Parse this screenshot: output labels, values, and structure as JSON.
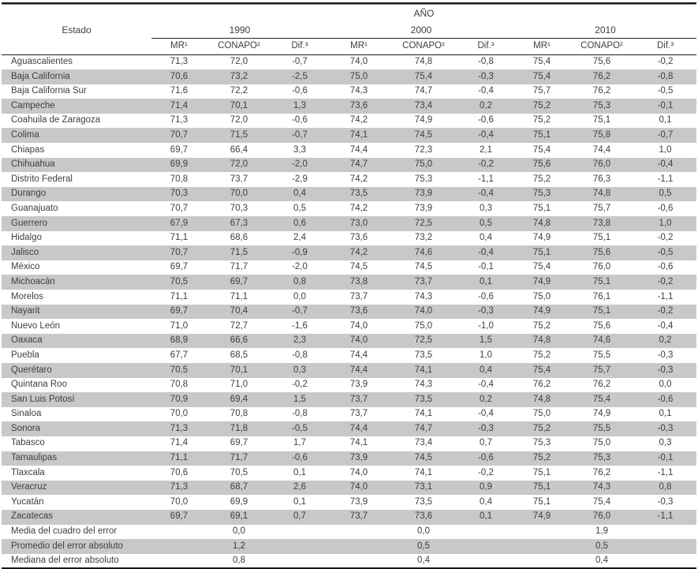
{
  "table": {
    "title_axis": "AÑO",
    "estado_header": "Estado",
    "years": [
      "1990",
      "2000",
      "2010"
    ],
    "subheaders": [
      "MR¹",
      "CONAPO²",
      "Dif.³"
    ],
    "colors": {
      "stripe_gray": "#c8c8c8",
      "text": "#3f3f3f",
      "rule": "#161616"
    },
    "rows": [
      {
        "estado": "Aguascalientes",
        "values": [
          "71,3",
          "72,0",
          "-0,7",
          "74,0",
          "74,8",
          "-0,8",
          "75,4",
          "75,6",
          "-0,2"
        ]
      },
      {
        "estado": "Baja California",
        "values": [
          "70,6",
          "73,2",
          "-2,5",
          "75,0",
          "75,4",
          "-0,3",
          "75,4",
          "76,2",
          "-0,8"
        ]
      },
      {
        "estado": "Baja California Sur",
        "values": [
          "71,6",
          "72,2",
          "-0,6",
          "74,3",
          "74,7",
          "-0,4",
          "75,7",
          "76,2",
          "-0,5"
        ]
      },
      {
        "estado": "Campeche",
        "values": [
          "71,4",
          "70,1",
          "1,3",
          "73,6",
          "73,4",
          "0,2",
          "75,2",
          "75,3",
          "-0,1"
        ]
      },
      {
        "estado": "Coahuila de Zaragoza",
        "values": [
          "71,3",
          "72,0",
          "-0,6",
          "74,2",
          "74,9",
          "-0,6",
          "75,2",
          "75,1",
          "0,1"
        ]
      },
      {
        "estado": "Colima",
        "values": [
          "70,7",
          "71,5",
          "-0,7",
          "74,1",
          "74,5",
          "-0,4",
          "75,1",
          "75,8",
          "-0,7"
        ]
      },
      {
        "estado": "Chiapas",
        "values": [
          "69,7",
          "66,4",
          "3,3",
          "74,4",
          "72,3",
          "2,1",
          "75,4",
          "74,4",
          "1,0"
        ]
      },
      {
        "estado": "Chihuahua",
        "values": [
          "69,9",
          "72,0",
          "-2,0",
          "74,7",
          "75,0",
          "-0,2",
          "75,6",
          "76,0",
          "-0,4"
        ]
      },
      {
        "estado": "Distrito Federal",
        "values": [
          "70,8",
          "73,7",
          "-2,9",
          "74,2",
          "75,3",
          "-1,1",
          "75,2",
          "76,3",
          "-1,1"
        ]
      },
      {
        "estado": "Durango",
        "values": [
          "70,3",
          "70,0",
          "0,4",
          "73,5",
          "73,9",
          "-0,4",
          "75,3",
          "74,8",
          "0,5"
        ]
      },
      {
        "estado": "Guanajuato",
        "values": [
          "70,7",
          "70,3",
          "0,5",
          "74,2",
          "73,9",
          "0,3",
          "75,1",
          "75,7",
          "-0,6"
        ]
      },
      {
        "estado": "Guerrero",
        "values": [
          "67,9",
          "67,3",
          "0,6",
          "73,0",
          "72,5",
          "0,5",
          "74,8",
          "73,8",
          "1,0"
        ]
      },
      {
        "estado": "Hidalgo",
        "values": [
          "71,1",
          "68,6",
          "2,4",
          "73,6",
          "73,2",
          "0,4",
          "74,9",
          "75,1",
          "-0,2"
        ]
      },
      {
        "estado": "Jalisco",
        "values": [
          "70,7",
          "71,5",
          "-0,9",
          "74,2",
          "74,6",
          "-0,4",
          "75,1",
          "75,6",
          "-0,5"
        ]
      },
      {
        "estado": "México",
        "values": [
          "69,7",
          "71,7",
          "-2,0",
          "74,5",
          "74,5",
          "-0,1",
          "75,4",
          "76,0",
          "-0,6"
        ]
      },
      {
        "estado": "Michoacán",
        "values": [
          "70,5",
          "69,7",
          "0,8",
          "73,8",
          "73,7",
          "0,1",
          "74,9",
          "75,1",
          "-0,2"
        ]
      },
      {
        "estado": "Morelos",
        "values": [
          "71,1",
          "71,1",
          "0,0",
          "73,7",
          "74,3",
          "-0,6",
          "75,0",
          "76,1",
          "-1,1"
        ]
      },
      {
        "estado": "Nayarit",
        "values": [
          "69,7",
          "70,4",
          "-0,7",
          "73,6",
          "74,0",
          "-0,3",
          "74,9",
          "75,1",
          "-0,2"
        ]
      },
      {
        "estado": "Nuevo León",
        "values": [
          "71,0",
          "72,7",
          "-1,6",
          "74,0",
          "75,0",
          "-1,0",
          "75,2",
          "75,6",
          "-0,4"
        ]
      },
      {
        "estado": "Oaxaca",
        "values": [
          "68,9",
          "66,6",
          "2,3",
          "74,0",
          "72,5",
          "1,5",
          "74,8",
          "74,6",
          "0,2"
        ]
      },
      {
        "estado": "Puebla",
        "values": [
          "67,7",
          "68,5",
          "-0,8",
          "74,4",
          "73,5",
          "1,0",
          "75,2",
          "75,5",
          "-0,3"
        ]
      },
      {
        "estado": "Querétaro",
        "values": [
          "70,5",
          "70,1",
          "0,3",
          "74,4",
          "74,1",
          "0,4",
          "75,4",
          "75,7",
          "-0,3"
        ]
      },
      {
        "estado": "Quintana Roo",
        "values": [
          "70,8",
          "71,0",
          "-0,2",
          "73,9",
          "74,3",
          "-0,4",
          "76,2",
          "76,2",
          "0,0"
        ]
      },
      {
        "estado": "San Luis Potosí",
        "values": [
          "70,9",
          "69,4",
          "1,5",
          "73,7",
          "73,5",
          "0,2",
          "74,8",
          "75,4",
          "-0,6"
        ]
      },
      {
        "estado": "Sinaloa",
        "values": [
          "70,0",
          "70,8",
          "-0,8",
          "73,7",
          "74,1",
          "-0,4",
          "75,0",
          "74,9",
          "0,1"
        ]
      },
      {
        "estado": "Sonora",
        "values": [
          "71,3",
          "71,8",
          "-0,5",
          "74,4",
          "74,7",
          "-0,3",
          "75,2",
          "75,5",
          "-0,3"
        ]
      },
      {
        "estado": "Tabasco",
        "values": [
          "71,4",
          "69,7",
          "1,7",
          "74,1",
          "73,4",
          "0,7",
          "75,3",
          "75,0",
          "0,3"
        ]
      },
      {
        "estado": "Tamaulipas",
        "values": [
          "71,1",
          "71,7",
          "-0,6",
          "73,9",
          "74,5",
          "-0,6",
          "75,2",
          "75,3",
          "-0,1"
        ]
      },
      {
        "estado": "Tlaxcala",
        "values": [
          "70,6",
          "70,5",
          "0,1",
          "74,0",
          "74,1",
          "-0,2",
          "75,1",
          "76,2",
          "-1,1"
        ]
      },
      {
        "estado": "Veracruz",
        "values": [
          "71,3",
          "68,7",
          "2,6",
          "74,0",
          "73,1",
          "0,9",
          "75,1",
          "74,3",
          "0,8"
        ]
      },
      {
        "estado": "Yucatán",
        "values": [
          "70,0",
          "69,9",
          "0,1",
          "73,9",
          "73,5",
          "0,4",
          "75,1",
          "75,4",
          "-0,3"
        ]
      },
      {
        "estado": "Zacatecas",
        "values": [
          "69,7",
          "69,1",
          "0,7",
          "73,7",
          "73,6",
          "0,1",
          "74,9",
          "76,0",
          "-1,1"
        ]
      }
    ],
    "summary_rows": [
      {
        "label": "Media del cuadro del error",
        "values": [
          "0,0",
          "0,0",
          "1,9"
        ]
      },
      {
        "label": "Promedio del error absoluto",
        "values": [
          "1,2",
          "0,5",
          "0,5"
        ]
      },
      {
        "label": "Mediana del error absoluto",
        "values": [
          "0,8",
          "0,4",
          "0,4"
        ]
      }
    ]
  }
}
